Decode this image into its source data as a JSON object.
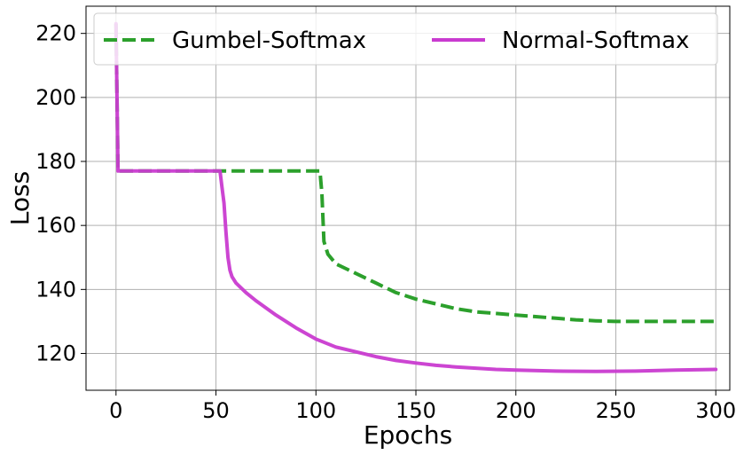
{
  "chart_data": {
    "type": "line",
    "title": "",
    "xlabel": "Epochs",
    "ylabel": "Loss",
    "xlim": [
      -15,
      307
    ],
    "ylim": [
      108.5,
      228.5
    ],
    "xticks": [
      0,
      50,
      100,
      150,
      200,
      250,
      300
    ],
    "yticks": [
      120,
      140,
      160,
      180,
      200,
      220
    ],
    "grid": true,
    "legend_position": "top",
    "series": [
      {
        "name": "Gumbel-Softmax",
        "color": "#2ca02c",
        "style": "dashed",
        "x": [
          0,
          1,
          2,
          10,
          50,
          100,
          102,
          103,
          104,
          106,
          110,
          120,
          130,
          140,
          150,
          160,
          170,
          180,
          190,
          200,
          210,
          220,
          230,
          240,
          250,
          260,
          270,
          280,
          290,
          300
        ],
        "y": [
          223,
          177,
          177,
          177,
          177,
          177,
          177,
          170,
          155,
          151,
          148,
          145,
          142,
          139,
          137,
          135.5,
          134,
          133,
          132.5,
          132,
          131.5,
          131,
          130.5,
          130.2,
          130,
          130,
          130,
          130,
          130,
          130
        ]
      },
      {
        "name": "Normal-Softmax",
        "color": "#c93bd0",
        "style": "solid",
        "x": [
          0,
          1,
          2,
          10,
          50,
          52,
          53,
          54,
          55,
          56,
          57,
          58,
          60,
          65,
          70,
          80,
          90,
          100,
          110,
          120,
          130,
          140,
          150,
          160,
          170,
          180,
          190,
          200,
          220,
          240,
          260,
          280,
          300
        ],
        "y": [
          223,
          177,
          177,
          177,
          177,
          177,
          172,
          167,
          158,
          150,
          146,
          144,
          142,
          139,
          136.5,
          132,
          128,
          124.5,
          122,
          120.5,
          119,
          117.8,
          117,
          116.3,
          115.8,
          115.4,
          115,
          114.8,
          114.5,
          114.4,
          114.5,
          114.8,
          115
        ]
      }
    ]
  }
}
